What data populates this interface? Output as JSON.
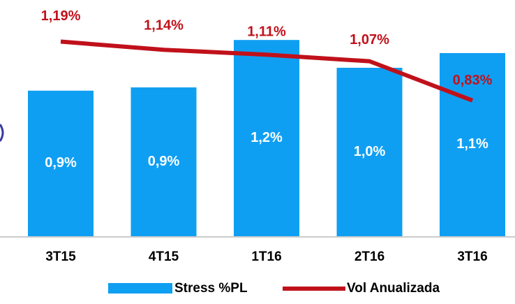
{
  "chart_data": {
    "type": "bar-line",
    "categories": [
      "3T15",
      "4T15",
      "1T16",
      "2T16",
      "3T16"
    ],
    "series": [
      {
        "name": "Stress %PL",
        "type": "bar",
        "color": "#0f9ff2",
        "values": [
          0.89,
          0.91,
          1.2,
          1.03,
          1.12
        ],
        "value_labels": [
          "0,9%",
          "0,9%",
          "1,2%",
          "1,0%",
          "1,1%"
        ]
      },
      {
        "name": "Vol Anualizada",
        "type": "line",
        "color": "#c0111b",
        "values": [
          1.19,
          1.14,
          1.11,
          1.07,
          0.83
        ],
        "value_labels": [
          "1,19%",
          "1,14%",
          "1,11%",
          "1,07%",
          "0,83%"
        ]
      }
    ]
  }
}
